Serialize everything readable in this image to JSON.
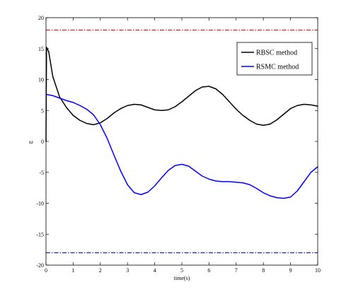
{
  "chart_data": {
    "type": "line",
    "title": "",
    "xlabel": "time(s)",
    "ylabel": "ω",
    "xlim": [
      0,
      10
    ],
    "ylim": [
      -20,
      20
    ],
    "xticks": [
      0,
      1,
      2,
      3,
      4,
      5,
      6,
      7,
      8,
      9,
      10
    ],
    "yticks": [
      -20,
      -15,
      -10,
      -5,
      0,
      5,
      10,
      15,
      20
    ],
    "grid": false,
    "legend_position": "top-right",
    "series": [
      {
        "name": "RBSC method",
        "color": "#000000",
        "style": "solid",
        "x": [
          0,
          0.02,
          0.1,
          0.25,
          0.5,
          0.75,
          1.0,
          1.25,
          1.5,
          1.75,
          2.0,
          2.25,
          2.5,
          2.75,
          3.0,
          3.25,
          3.5,
          3.75,
          4.0,
          4.25,
          4.5,
          4.75,
          5.0,
          5.25,
          5.5,
          5.75,
          6.0,
          6.25,
          6.5,
          6.75,
          7.0,
          7.25,
          7.5,
          7.75,
          8.0,
          8.25,
          8.5,
          8.75,
          9.0,
          9.25,
          9.5,
          9.75,
          10.0
        ],
        "y": [
          0,
          15.2,
          14.5,
          10.5,
          7.2,
          5.5,
          4.2,
          3.4,
          2.9,
          2.7,
          3.0,
          3.7,
          4.6,
          5.3,
          5.8,
          6.0,
          5.9,
          5.5,
          5.1,
          5.0,
          5.1,
          5.6,
          6.4,
          7.3,
          8.2,
          8.8,
          8.9,
          8.5,
          7.6,
          6.4,
          5.2,
          4.2,
          3.4,
          2.8,
          2.6,
          2.8,
          3.5,
          4.4,
          5.3,
          5.8,
          6.0,
          5.9,
          5.7
        ]
      },
      {
        "name": "RSMC method",
        "color": "#0000ff",
        "style": "solid",
        "x": [
          0,
          0.25,
          0.5,
          0.75,
          1.0,
          1.25,
          1.5,
          1.75,
          2.0,
          2.25,
          2.5,
          2.75,
          3.0,
          3.25,
          3.5,
          3.75,
          4.0,
          4.25,
          4.5,
          4.75,
          5.0,
          5.25,
          5.5,
          5.75,
          6.0,
          6.25,
          6.5,
          6.75,
          7.0,
          7.25,
          7.5,
          7.75,
          8.0,
          8.25,
          8.5,
          8.75,
          9.0,
          9.25,
          9.5,
          9.75,
          10.0
        ],
        "y": [
          7.6,
          7.4,
          7.0,
          6.6,
          6.3,
          5.8,
          5.2,
          4.3,
          2.7,
          0.5,
          -2.2,
          -4.8,
          -7.0,
          -8.3,
          -8.6,
          -8.2,
          -7.2,
          -5.9,
          -4.7,
          -3.9,
          -3.7,
          -4.0,
          -4.8,
          -5.6,
          -6.1,
          -6.4,
          -6.5,
          -6.5,
          -6.6,
          -6.7,
          -7.0,
          -7.6,
          -8.3,
          -8.8,
          -9.1,
          -9.2,
          -9.0,
          -8.0,
          -6.5,
          -5.0,
          -4.1
        ]
      }
    ],
    "bounds": [
      {
        "value": 18,
        "color": "#e02020",
        "style": "dash-dot"
      },
      {
        "value": -18,
        "color": "#2020c0",
        "style": "dash-dot"
      }
    ]
  }
}
